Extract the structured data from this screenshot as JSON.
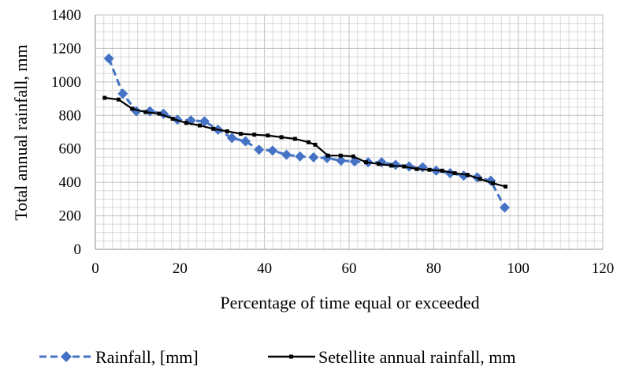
{
  "chart_data": {
    "type": "line",
    "title": "",
    "xlabel": "Percentage of time equal or exceeded",
    "ylabel": "Total annual rainfall,  mm",
    "xlim": [
      0,
      120
    ],
    "ylim": [
      0,
      1400
    ],
    "x_ticks": [
      "0",
      "20",
      "40",
      "60",
      "80",
      "100",
      "120"
    ],
    "y_ticks": [
      "0",
      "200",
      "400",
      "600",
      "800",
      "1000",
      "1200",
      "1400"
    ],
    "grid": true,
    "legend_position": "bottom",
    "series": [
      {
        "name": "Rainfall, [mm]",
        "color": "#4472C4",
        "style": "dashed",
        "marker": "diamond",
        "x": [
          3.2,
          6.5,
          9.7,
          12.9,
          16.1,
          19.4,
          22.6,
          25.8,
          29.0,
          32.3,
          35.5,
          38.7,
          41.9,
          45.2,
          48.4,
          51.6,
          54.8,
          58.1,
          61.3,
          64.5,
          67.7,
          71.0,
          74.2,
          77.4,
          80.6,
          83.9,
          87.1,
          90.3,
          93.5,
          96.8
        ],
        "y": [
          1140,
          930,
          825,
          825,
          810,
          775,
          770,
          765,
          715,
          665,
          645,
          595,
          590,
          565,
          555,
          550,
          545,
          530,
          525,
          520,
          520,
          505,
          495,
          490,
          470,
          455,
          440,
          430,
          410,
          250
        ]
      },
      {
        "name": "Setellite annual rainfall, mm",
        "color": "#000000",
        "style": "solid",
        "marker": "square",
        "x": [
          2.2,
          5.5,
          8.7,
          11.9,
          15.1,
          18.3,
          21.5,
          24.7,
          27.9,
          31.2,
          34.4,
          37.6,
          40.8,
          44.0,
          47.2,
          50.4,
          52.0,
          55.0,
          58.0,
          61.0,
          64.0,
          67.0,
          70.0,
          73.0,
          76.0,
          79.0,
          82.0,
          85.0,
          88.0,
          91.0,
          94.0,
          97.0
        ],
        "y": [
          905,
          895,
          840,
          820,
          810,
          780,
          755,
          740,
          720,
          705,
          690,
          685,
          680,
          670,
          660,
          640,
          625,
          560,
          560,
          555,
          520,
          510,
          500,
          495,
          480,
          475,
          470,
          455,
          445,
          420,
          395,
          375
        ]
      }
    ]
  }
}
